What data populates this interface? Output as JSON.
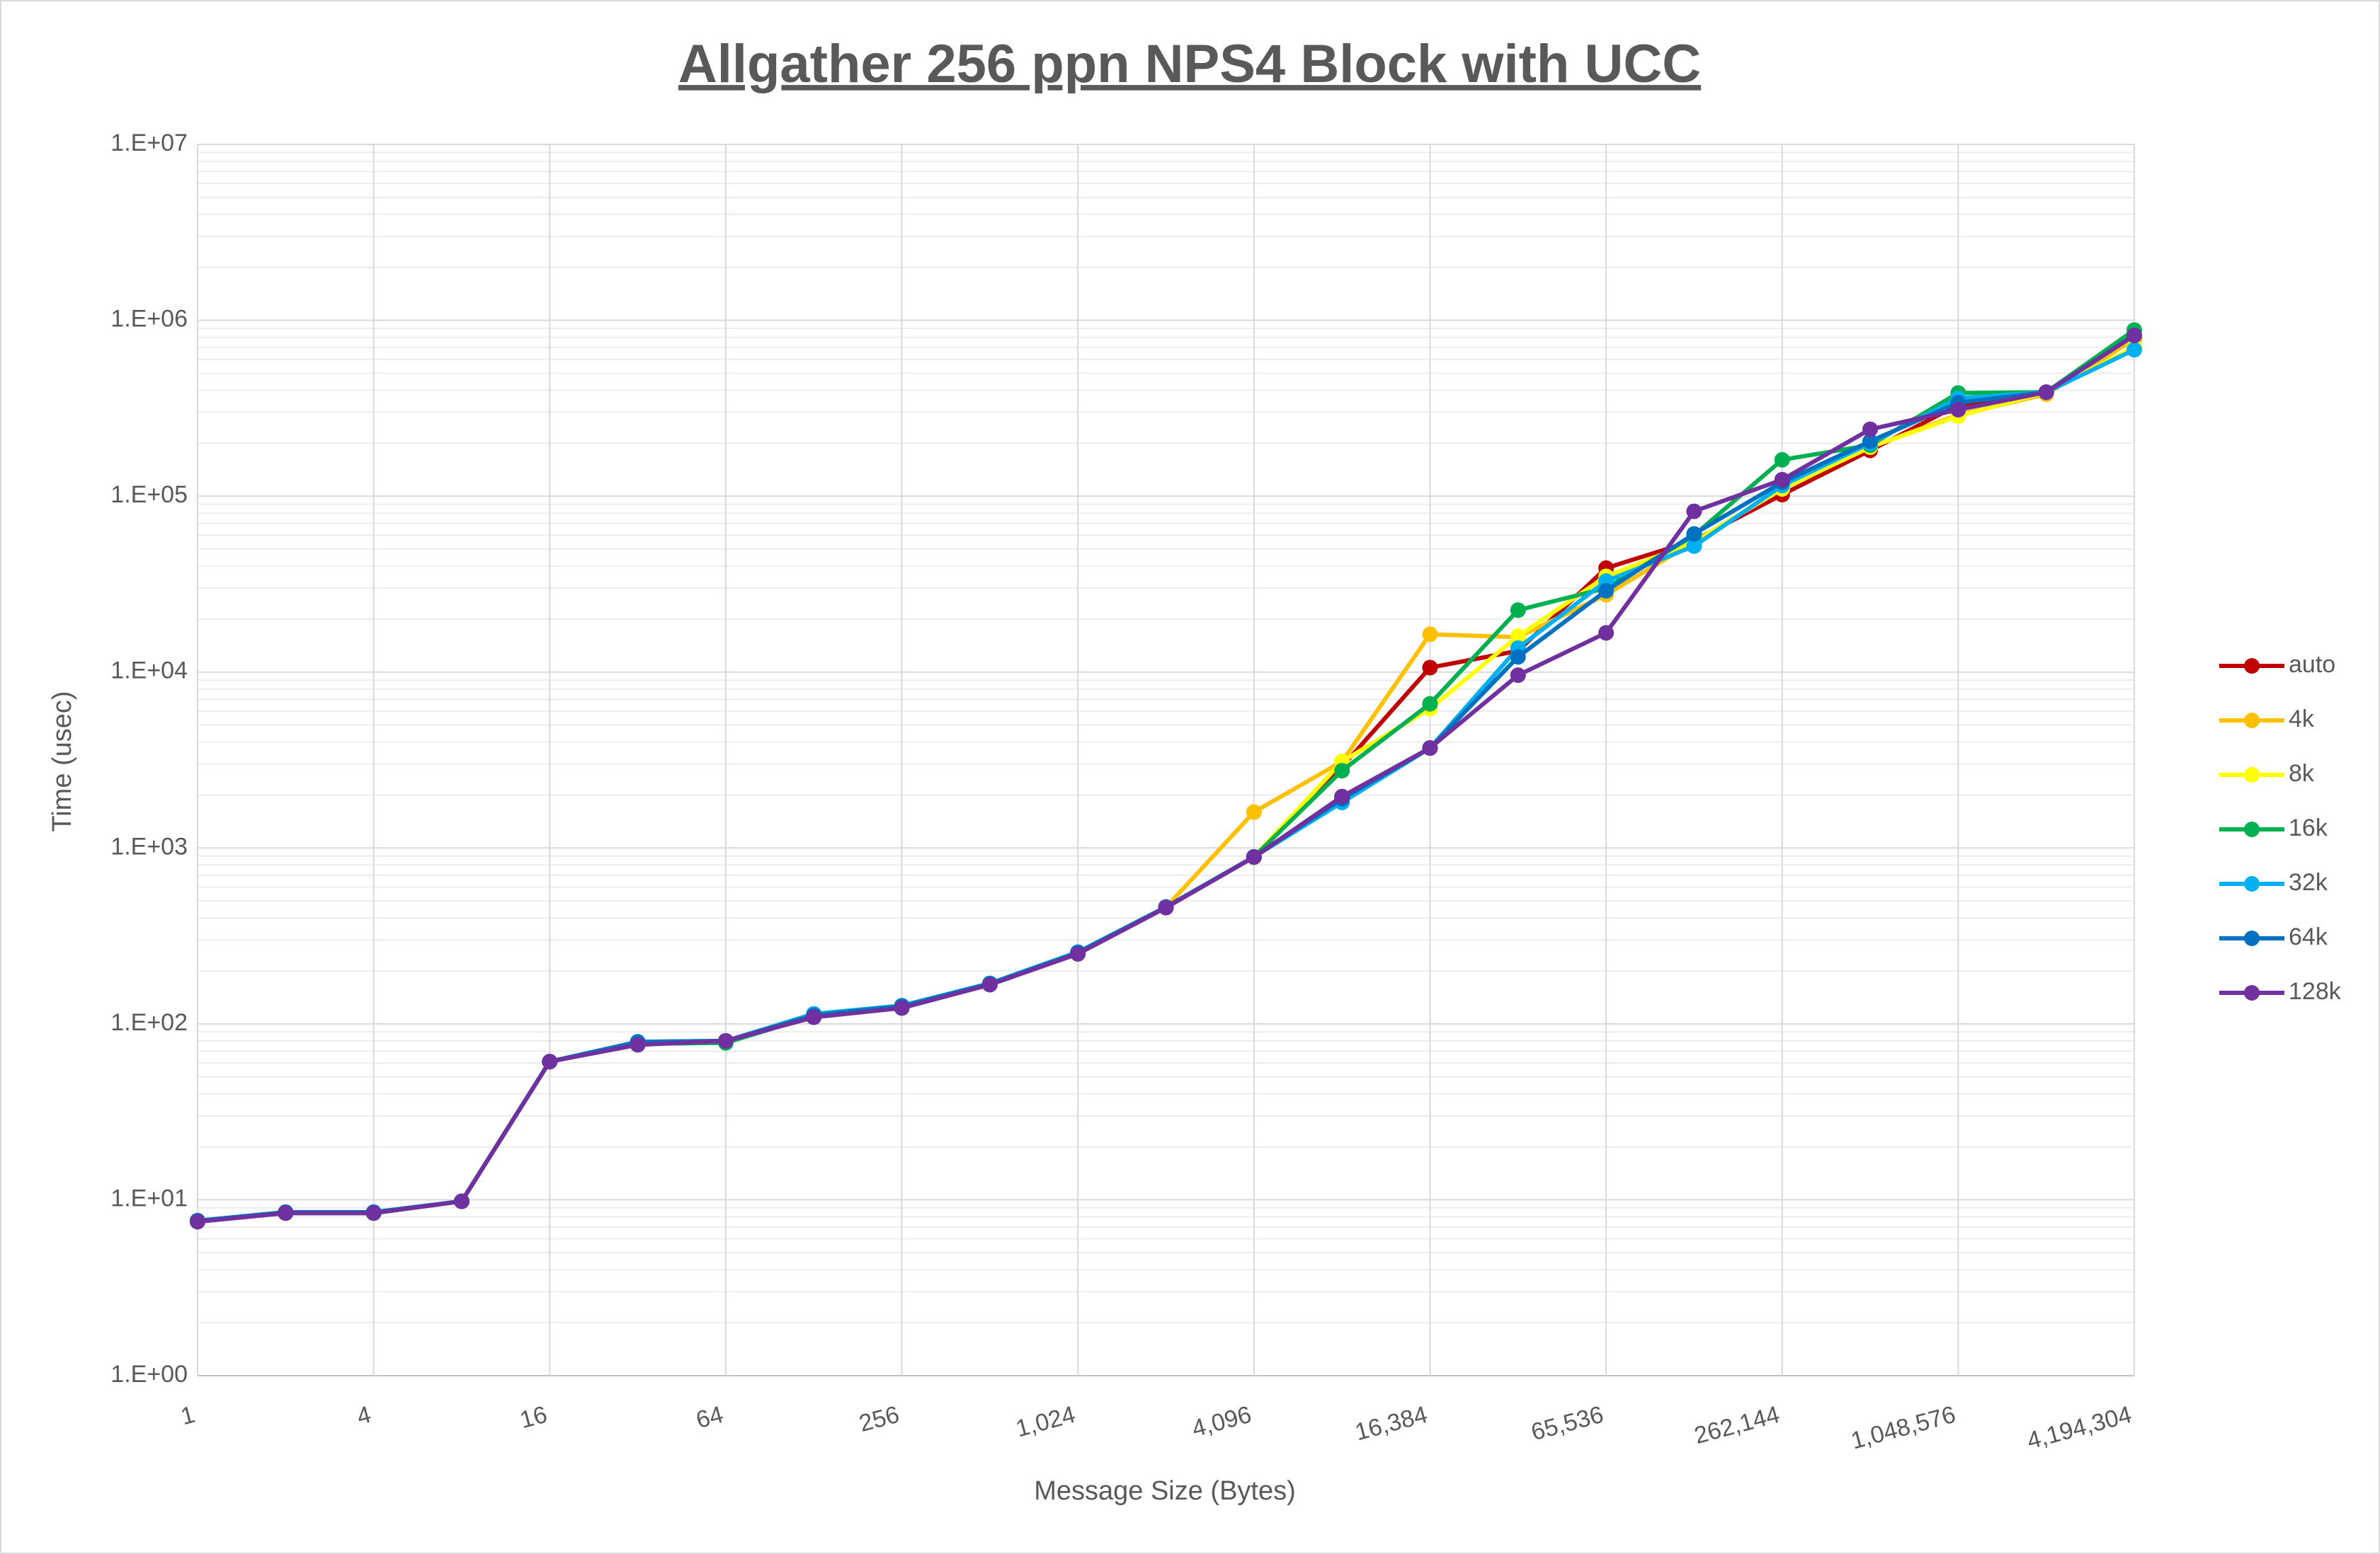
{
  "chart_data": {
    "type": "line",
    "title": "Allgather 256 ppn NPS4 Block with UCC",
    "x_label": "Message Size (Bytes)",
    "y_label": "Time (usec)",
    "x_scale": "log",
    "y_scale": "log",
    "grid": true,
    "minor_grid": true,
    "legend": "right",
    "x": [
      1,
      2,
      4,
      8,
      16,
      32,
      64,
      128,
      256,
      512,
      1024,
      2048,
      4096,
      8192,
      16384,
      32768,
      65536,
      131072,
      262144,
      524288,
      1048576,
      2097152,
      4194304
    ],
    "xlim": [
      1,
      4194304
    ],
    "xticks": [
      1,
      4,
      16,
      64,
      256,
      {
        "value": 1024,
        "label": "1,024"
      },
      {
        "value": 4096,
        "label": "4,096"
      },
      {
        "value": 16384,
        "label": "16,384"
      },
      {
        "value": 65536,
        "label": "65,536"
      },
      {
        "value": 262144,
        "label": "262,144"
      },
      {
        "value": 1048576,
        "label": "1,048,576"
      },
      {
        "value": 4194304,
        "label": "4,194,304"
      }
    ],
    "ylim": [
      1,
      10000000
    ],
    "yticks": [
      {
        "value": 1,
        "label": "1.E+00"
      },
      {
        "value": 10,
        "label": "1.E+01"
      },
      {
        "value": 100,
        "label": "1.E+02"
      },
      {
        "value": 1000,
        "label": "1.E+03"
      },
      {
        "value": 10000,
        "label": "1.E+04"
      },
      {
        "value": 100000,
        "label": "1.E+05"
      },
      {
        "value": 1000000,
        "label": "1.E+06"
      },
      {
        "value": 10000000,
        "label": "1.E+07"
      }
    ],
    "series": [
      {
        "name": "auto",
        "color": "#c00000",
        "values": [
          7.6,
          8.4,
          8.4,
          9.8,
          61,
          77,
          80,
          110,
          124,
          168,
          252,
          460,
          890,
          2900,
          10600,
          13200,
          39000,
          56000,
          102000,
          182000,
          330000,
          390000,
          800000
        ]
      },
      {
        "name": "4k",
        "color": "#ffc000",
        "values": [
          7.6,
          8.4,
          8.4,
          9.8,
          61,
          77,
          80,
          110,
          124,
          168,
          252,
          460,
          1600,
          3100,
          16400,
          15800,
          27500,
          55000,
          110000,
          190000,
          290000,
          380000,
          780000
        ]
      },
      {
        "name": "8k",
        "color": "#ffff00",
        "values": [
          7.6,
          8.4,
          8.4,
          9.8,
          61,
          77,
          80,
          110,
          124,
          168,
          252,
          460,
          890,
          3100,
          6200,
          16000,
          35000,
          55000,
          110000,
          190000,
          285000,
          390000,
          700000
        ]
      },
      {
        "name": "16k",
        "color": "#00b050",
        "values": [
          7.6,
          8.4,
          8.4,
          9.8,
          61,
          77,
          78,
          111,
          125,
          168,
          254,
          460,
          890,
          2750,
          6600,
          22500,
          30000,
          60000,
          161000,
          195000,
          386000,
          390000,
          880000
        ]
      },
      {
        "name": "32k",
        "color": "#00b0f0",
        "values": [
          7.6,
          8.5,
          8.5,
          9.8,
          61,
          79,
          80,
          114,
          127,
          170,
          256,
          462,
          890,
          1815,
          3700,
          13700,
          32900,
          52000,
          115000,
          200000,
          360000,
          390000,
          680000
        ]
      },
      {
        "name": "64k",
        "color": "#0070c0",
        "values": [
          7.6,
          8.5,
          8.5,
          9.8,
          61,
          79,
          80,
          112,
          126,
          169,
          254,
          461,
          890,
          1900,
          3700,
          12200,
          29000,
          61000,
          120000,
          205000,
          340000,
          390000,
          820000
        ]
      },
      {
        "name": "128k",
        "color": "#7030a0",
        "values": [
          7.5,
          8.4,
          8.4,
          9.8,
          61,
          76,
          80,
          109,
          123,
          167,
          250,
          458,
          887,
          1960,
          3700,
          9600,
          16700,
          82000,
          124000,
          240000,
          310000,
          390000,
          820000
        ]
      }
    ]
  }
}
